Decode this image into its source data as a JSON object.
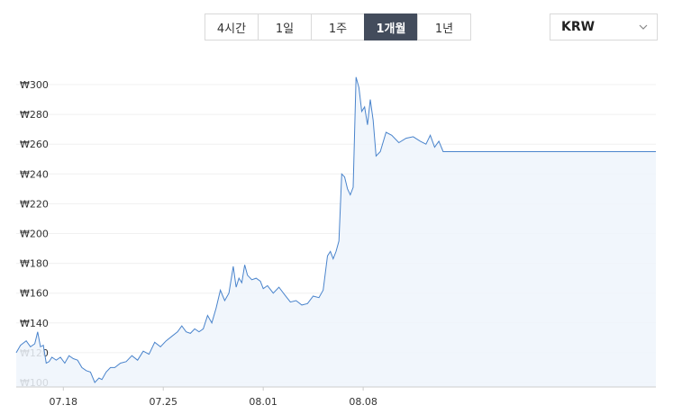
{
  "range_tabs": [
    {
      "label": "4시간",
      "active": false
    },
    {
      "label": "1일",
      "active": false
    },
    {
      "label": "1주",
      "active": false
    },
    {
      "label": "1개월",
      "active": true
    },
    {
      "label": "1년",
      "active": false
    }
  ],
  "currency": {
    "selected": "KRW",
    "icon": "chevron-down-icon"
  },
  "chart_data": {
    "type": "area",
    "y_ticks": [
      "₩300",
      "₩280",
      "₩260",
      "₩240",
      "₩220",
      "₩200",
      "₩180",
      "₩160",
      "₩140",
      "₩120",
      "₩100"
    ],
    "y_tick_values": [
      300,
      280,
      260,
      240,
      220,
      200,
      180,
      160,
      140,
      120,
      100
    ],
    "ylim": [
      100,
      305
    ],
    "x_ticks": [
      "07.18",
      "07.25",
      "08.01",
      "08.08"
    ],
    "x_range_days": [
      -3.3,
      41.5
    ],
    "x_tick_days": [
      0,
      7,
      14,
      21
    ],
    "series": [
      {
        "days": [
          -3.3,
          -3.0,
          -2.6,
          -2.3,
          -2.0,
          -1.8,
          -1.6,
          -1.4,
          -1.2,
          -1.0,
          -0.8,
          -0.5,
          -0.2,
          0.1,
          0.4,
          0.7,
          1.0,
          1.3,
          1.6,
          1.9,
          2.2,
          2.5,
          2.7,
          3.0,
          3.3,
          3.6,
          4.0,
          4.4,
          4.8,
          5.2,
          5.6,
          6.0,
          6.4,
          6.8,
          7.2,
          7.6,
          8.0,
          8.3,
          8.6,
          8.9,
          9.2,
          9.5,
          9.8,
          10.1,
          10.4,
          10.7,
          11.0,
          11.3,
          11.6,
          11.9,
          12.1,
          12.3,
          12.5,
          12.7,
          12.9,
          13.2,
          13.5,
          13.8,
          14.0,
          14.3,
          14.7,
          15.1,
          15.5,
          15.9,
          16.3,
          16.7,
          17.1,
          17.5,
          17.9,
          18.2,
          18.5,
          18.7,
          18.9,
          19.1,
          19.3,
          19.5,
          19.7,
          19.9,
          20.1,
          20.3,
          20.5,
          20.7,
          20.9,
          21.1,
          21.3,
          21.5,
          21.7,
          21.9,
          22.2,
          22.6,
          23.0,
          23.5,
          24.0,
          24.5,
          25.0,
          25.4,
          25.7,
          26.0,
          26.3,
          26.6
        ],
        "values": [
          120,
          125,
          128,
          124,
          126,
          134,
          124,
          125,
          113,
          114,
          117,
          115,
          117,
          113,
          118,
          116,
          115,
          110,
          108,
          107,
          100,
          103,
          102,
          107,
          110,
          110,
          113,
          114,
          118,
          115,
          121,
          119,
          127,
          124,
          128,
          131,
          134,
          138,
          134,
          133,
          136,
          134,
          136,
          145,
          140,
          150,
          162,
          155,
          160,
          178,
          164,
          170,
          167,
          179,
          172,
          169,
          170,
          168,
          163,
          165,
          160,
          164,
          159,
          154,
          155,
          152,
          153,
          158,
          157,
          162,
          185,
          188,
          183,
          188,
          195,
          240,
          238,
          230,
          226,
          231,
          305,
          298,
          282,
          285,
          273,
          290,
          276,
          252,
          255,
          268,
          266,
          261,
          264,
          265,
          262,
          260,
          266,
          258,
          262,
          255
        ]
      }
    ]
  }
}
